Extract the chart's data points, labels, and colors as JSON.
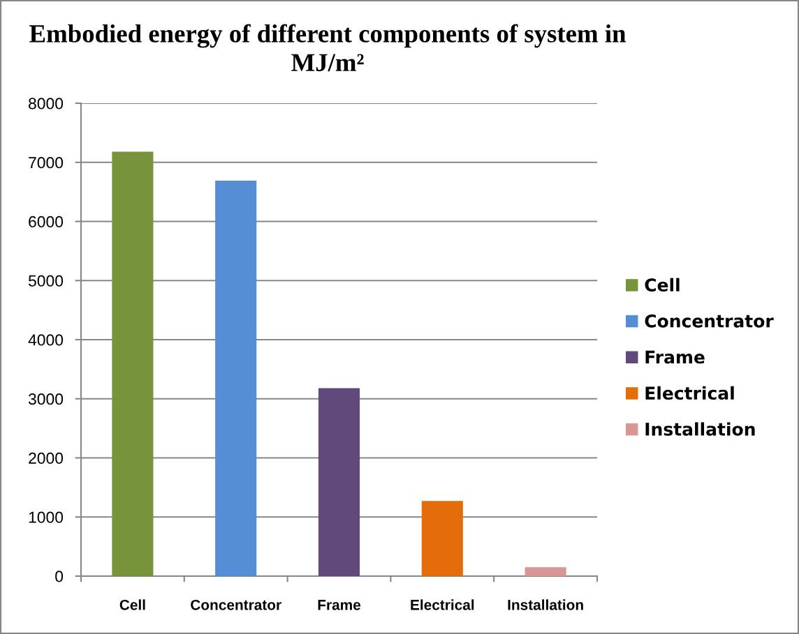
{
  "chart_data": {
    "type": "bar",
    "title": "Embodied energy of different components of system in MJ/m²",
    "categories": [
      "Cell",
      "Concentrator",
      "Frame",
      "Electrical",
      "Installation"
    ],
    "series": [
      {
        "name": "Cell",
        "color": "#77933c",
        "values": [
          7180,
          null,
          null,
          null,
          null
        ]
      },
      {
        "name": "Concentrator",
        "color": "#558ed5",
        "values": [
          null,
          6690,
          null,
          null,
          null
        ]
      },
      {
        "name": "Frame",
        "color": "#604a7b",
        "values": [
          null,
          null,
          3180,
          null,
          null
        ]
      },
      {
        "name": "Electrical",
        "color": "#e46c0a",
        "values": [
          null,
          null,
          null,
          1270,
          null
        ]
      },
      {
        "name": "Installation",
        "color": "#d99694",
        "values": [
          null,
          null,
          null,
          null,
          150
        ]
      }
    ],
    "stacked": true,
    "ylim": [
      0,
      8000
    ],
    "yticks": [
      0,
      1000,
      2000,
      3000,
      4000,
      5000,
      6000,
      7000,
      8000
    ],
    "grid": "y",
    "legend": "right"
  }
}
